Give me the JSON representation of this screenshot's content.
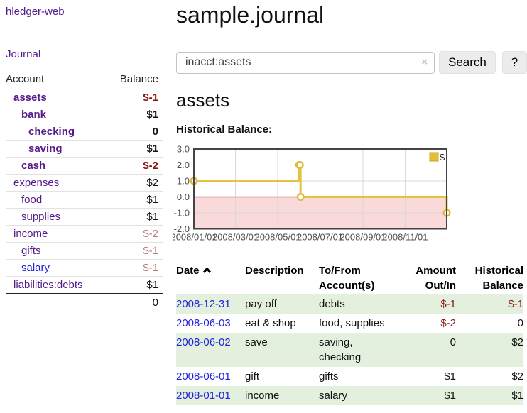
{
  "sidebar": {
    "brand": "hledger-web",
    "nav": {
      "journal": "Journal"
    },
    "accounts_table": {
      "headers": {
        "account": "Account",
        "balance": "Balance"
      },
      "rows": [
        {
          "account": "assets",
          "balance": "$-1"
        },
        {
          "account": "bank",
          "balance": "$1"
        },
        {
          "account": "checking",
          "balance": "0"
        },
        {
          "account": "saving",
          "balance": "$1"
        },
        {
          "account": "cash",
          "balance": "$-2"
        },
        {
          "account": "expenses",
          "balance": "$2"
        },
        {
          "account": "food",
          "balance": "$1"
        },
        {
          "account": "supplies",
          "balance": "$1"
        },
        {
          "account": "income",
          "balance": "$-2"
        },
        {
          "account": "gifts",
          "balance": "$-1"
        },
        {
          "account": "salary",
          "balance": "$-1"
        },
        {
          "account": "liabilities:debts",
          "balance": "$1"
        }
      ],
      "total": "0"
    }
  },
  "header": {
    "title": "sample.journal"
  },
  "search": {
    "value": "inacct:assets",
    "clear_label": "×",
    "button": "Search",
    "help_button": "?"
  },
  "account_page": {
    "heading": "assets",
    "chart_label": "Historical Balance:"
  },
  "chart_data": {
    "type": "line",
    "step": true,
    "title": "Historical Balance",
    "series": [
      {
        "name": "$",
        "color": "#e7c142",
        "points": [
          [
            "2008-01-01",
            1
          ],
          [
            "2008-06-01",
            2
          ],
          [
            "2008-06-02",
            2
          ],
          [
            "2008-06-03",
            0
          ],
          [
            "2008-12-31",
            -1
          ]
        ]
      }
    ],
    "x_range": [
      "2008-01-01",
      "2008-12-31"
    ],
    "x_ticks": [
      "2008/01/01",
      "2008/03/01",
      "2008/05/01",
      "2008/07/01",
      "2008/09/01",
      "2008/11/01"
    ],
    "y_ticks": [
      3,
      2,
      1,
      0,
      -1,
      -2
    ],
    "ylim": [
      -2,
      3
    ],
    "grid": true,
    "legend": {
      "label": "$",
      "position": "top-right"
    },
    "colors": {
      "marker_fill": "#ffffff",
      "marker_stroke": "#e0b83a",
      "negative_region": "#f9d9d9",
      "zero_line": "#990000",
      "grid": "#d8d8d8",
      "border": "#444444",
      "axis_text": "#4f4f4f",
      "legend_fill": "#e5bb3a",
      "legend_border": "#c7a12c"
    }
  },
  "register_table": {
    "headers": {
      "date": "Date",
      "description": "Description",
      "accounts": "To/From Account(s)",
      "amount": "Amount Out/In",
      "balance": "Historical Balance"
    },
    "rows": [
      {
        "date": "2008-12-31",
        "description": "pay off",
        "accounts": "debts",
        "amount": "$-1",
        "balance": "$-1"
      },
      {
        "date": "2008-06-03",
        "description": "eat & shop",
        "accounts": "food, supplies",
        "amount": "$-2",
        "balance": "0"
      },
      {
        "date": "2008-06-02",
        "description": "save",
        "accounts": "saving, checking",
        "amount": "0",
        "balance": "$2"
      },
      {
        "date": "2008-06-01",
        "description": "gift",
        "accounts": "gifts",
        "amount": "$1",
        "balance": "$2"
      },
      {
        "date": "2008-01-01",
        "description": "income",
        "accounts": "salary",
        "amount": "$1",
        "balance": "$1"
      }
    ]
  }
}
